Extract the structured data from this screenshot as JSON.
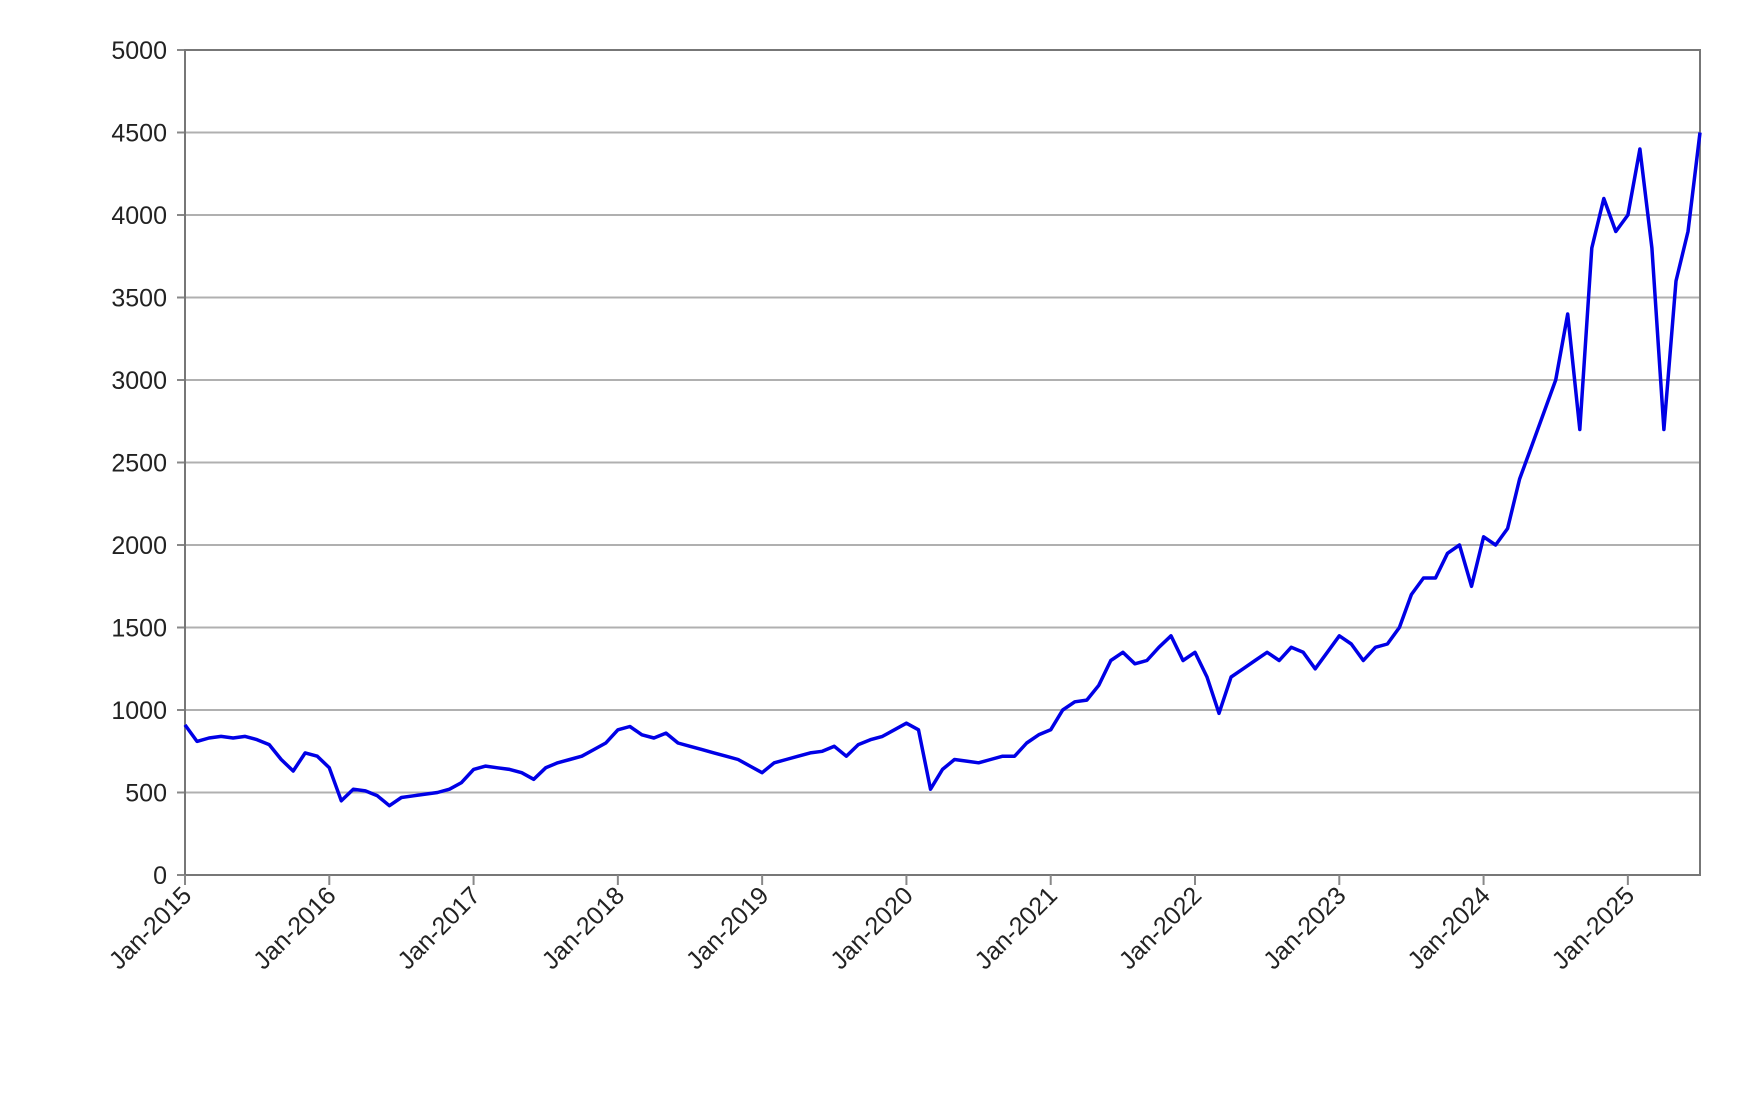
{
  "chart_data": {
    "type": "line",
    "x": [
      "2015-01",
      "2015-02",
      "2015-03",
      "2015-04",
      "2015-05",
      "2015-06",
      "2015-07",
      "2015-08",
      "2015-09",
      "2015-10",
      "2015-11",
      "2015-12",
      "2016-01",
      "2016-02",
      "2016-03",
      "2016-04",
      "2016-05",
      "2016-06",
      "2016-07",
      "2016-08",
      "2016-09",
      "2016-10",
      "2016-11",
      "2016-12",
      "2017-01",
      "2017-02",
      "2017-03",
      "2017-04",
      "2017-05",
      "2017-06",
      "2017-07",
      "2017-08",
      "2017-09",
      "2017-10",
      "2017-11",
      "2017-12",
      "2018-01",
      "2018-02",
      "2018-03",
      "2018-04",
      "2018-05",
      "2018-06",
      "2018-07",
      "2018-08",
      "2018-09",
      "2018-10",
      "2018-11",
      "2018-12",
      "2019-01",
      "2019-02",
      "2019-03",
      "2019-04",
      "2019-05",
      "2019-06",
      "2019-07",
      "2019-08",
      "2019-09",
      "2019-10",
      "2019-11",
      "2019-12",
      "2020-01",
      "2020-02",
      "2020-03",
      "2020-04",
      "2020-05",
      "2020-06",
      "2020-07",
      "2020-08",
      "2020-09",
      "2020-10",
      "2020-11",
      "2020-12",
      "2021-01",
      "2021-02",
      "2021-03",
      "2021-04",
      "2021-05",
      "2021-06",
      "2021-07",
      "2021-08",
      "2021-09",
      "2021-10",
      "2021-11",
      "2021-12",
      "2022-01",
      "2022-02",
      "2022-03",
      "2022-04",
      "2022-05",
      "2022-06",
      "2022-07",
      "2022-08",
      "2022-09",
      "2022-10",
      "2022-11",
      "2022-12",
      "2023-01",
      "2023-02",
      "2023-03",
      "2023-04",
      "2023-05",
      "2023-06",
      "2023-07",
      "2023-08",
      "2023-09",
      "2023-10",
      "2023-11",
      "2023-12",
      "2024-01",
      "2024-02",
      "2024-03",
      "2024-04",
      "2024-05",
      "2024-06",
      "2024-07",
      "2024-08",
      "2024-09",
      "2024-10",
      "2024-11",
      "2024-12",
      "2025-01",
      "2025-02",
      "2025-03",
      "2025-04",
      "2025-05",
      "2025-06",
      "2025-07"
    ],
    "series": [
      {
        "color": "#0000e6",
        "values": [
          910,
          810,
          830,
          840,
          830,
          840,
          820,
          790,
          700,
          630,
          740,
          720,
          650,
          450,
          520,
          510,
          480,
          420,
          470,
          480,
          490,
          500,
          520,
          560,
          640,
          660,
          650,
          640,
          620,
          580,
          650,
          680,
          700,
          720,
          760,
          800,
          880,
          900,
          850,
          830,
          860,
          800,
          780,
          760,
          740,
          720,
          700,
          660,
          620,
          680,
          700,
          720,
          740,
          750,
          780,
          720,
          790,
          820,
          840,
          880,
          920,
          880,
          520,
          640,
          700,
          690,
          680,
          700,
          720,
          720,
          800,
          850,
          880,
          1000,
          1050,
          1060,
          1150,
          1300,
          1350,
          1280,
          1300,
          1380,
          1450,
          1300,
          1350,
          1200,
          980,
          1200,
          1250,
          1300,
          1350,
          1300,
          1380,
          1350,
          1250,
          1350,
          1450,
          1400,
          1300,
          1380,
          1400,
          1500,
          1700,
          1800,
          1800,
          1950,
          2000,
          1750,
          2050,
          2000,
          2100,
          2400,
          2600,
          2800,
          3000,
          3400,
          2700,
          3800,
          4100,
          3900,
          4000,
          4400,
          3800,
          2700,
          3600,
          3900,
          4500
        ]
      }
    ],
    "xlim": [
      "2015-01",
      "2025-07"
    ],
    "xticks": [
      {
        "value": "2015-01",
        "label": "Jan-2015"
      },
      {
        "value": "2016-01",
        "label": "Jan-2016"
      },
      {
        "value": "2017-01",
        "label": "Jan-2017"
      },
      {
        "value": "2018-01",
        "label": "Jan-2018"
      },
      {
        "value": "2019-01",
        "label": "Jan-2019"
      },
      {
        "value": "2020-01",
        "label": "Jan-2020"
      },
      {
        "value": "2021-01",
        "label": "Jan-2021"
      },
      {
        "value": "2022-01",
        "label": "Jan-2022"
      },
      {
        "value": "2023-01",
        "label": "Jan-2023"
      },
      {
        "value": "2024-01",
        "label": "Jan-2024"
      },
      {
        "value": "2025-01",
        "label": "Jan-2025"
      }
    ],
    "ylim": [
      0,
      5000
    ],
    "yticks": [
      0,
      500,
      1000,
      1500,
      2000,
      2500,
      3000,
      3500,
      4000,
      4500,
      5000
    ],
    "grid": true
  }
}
